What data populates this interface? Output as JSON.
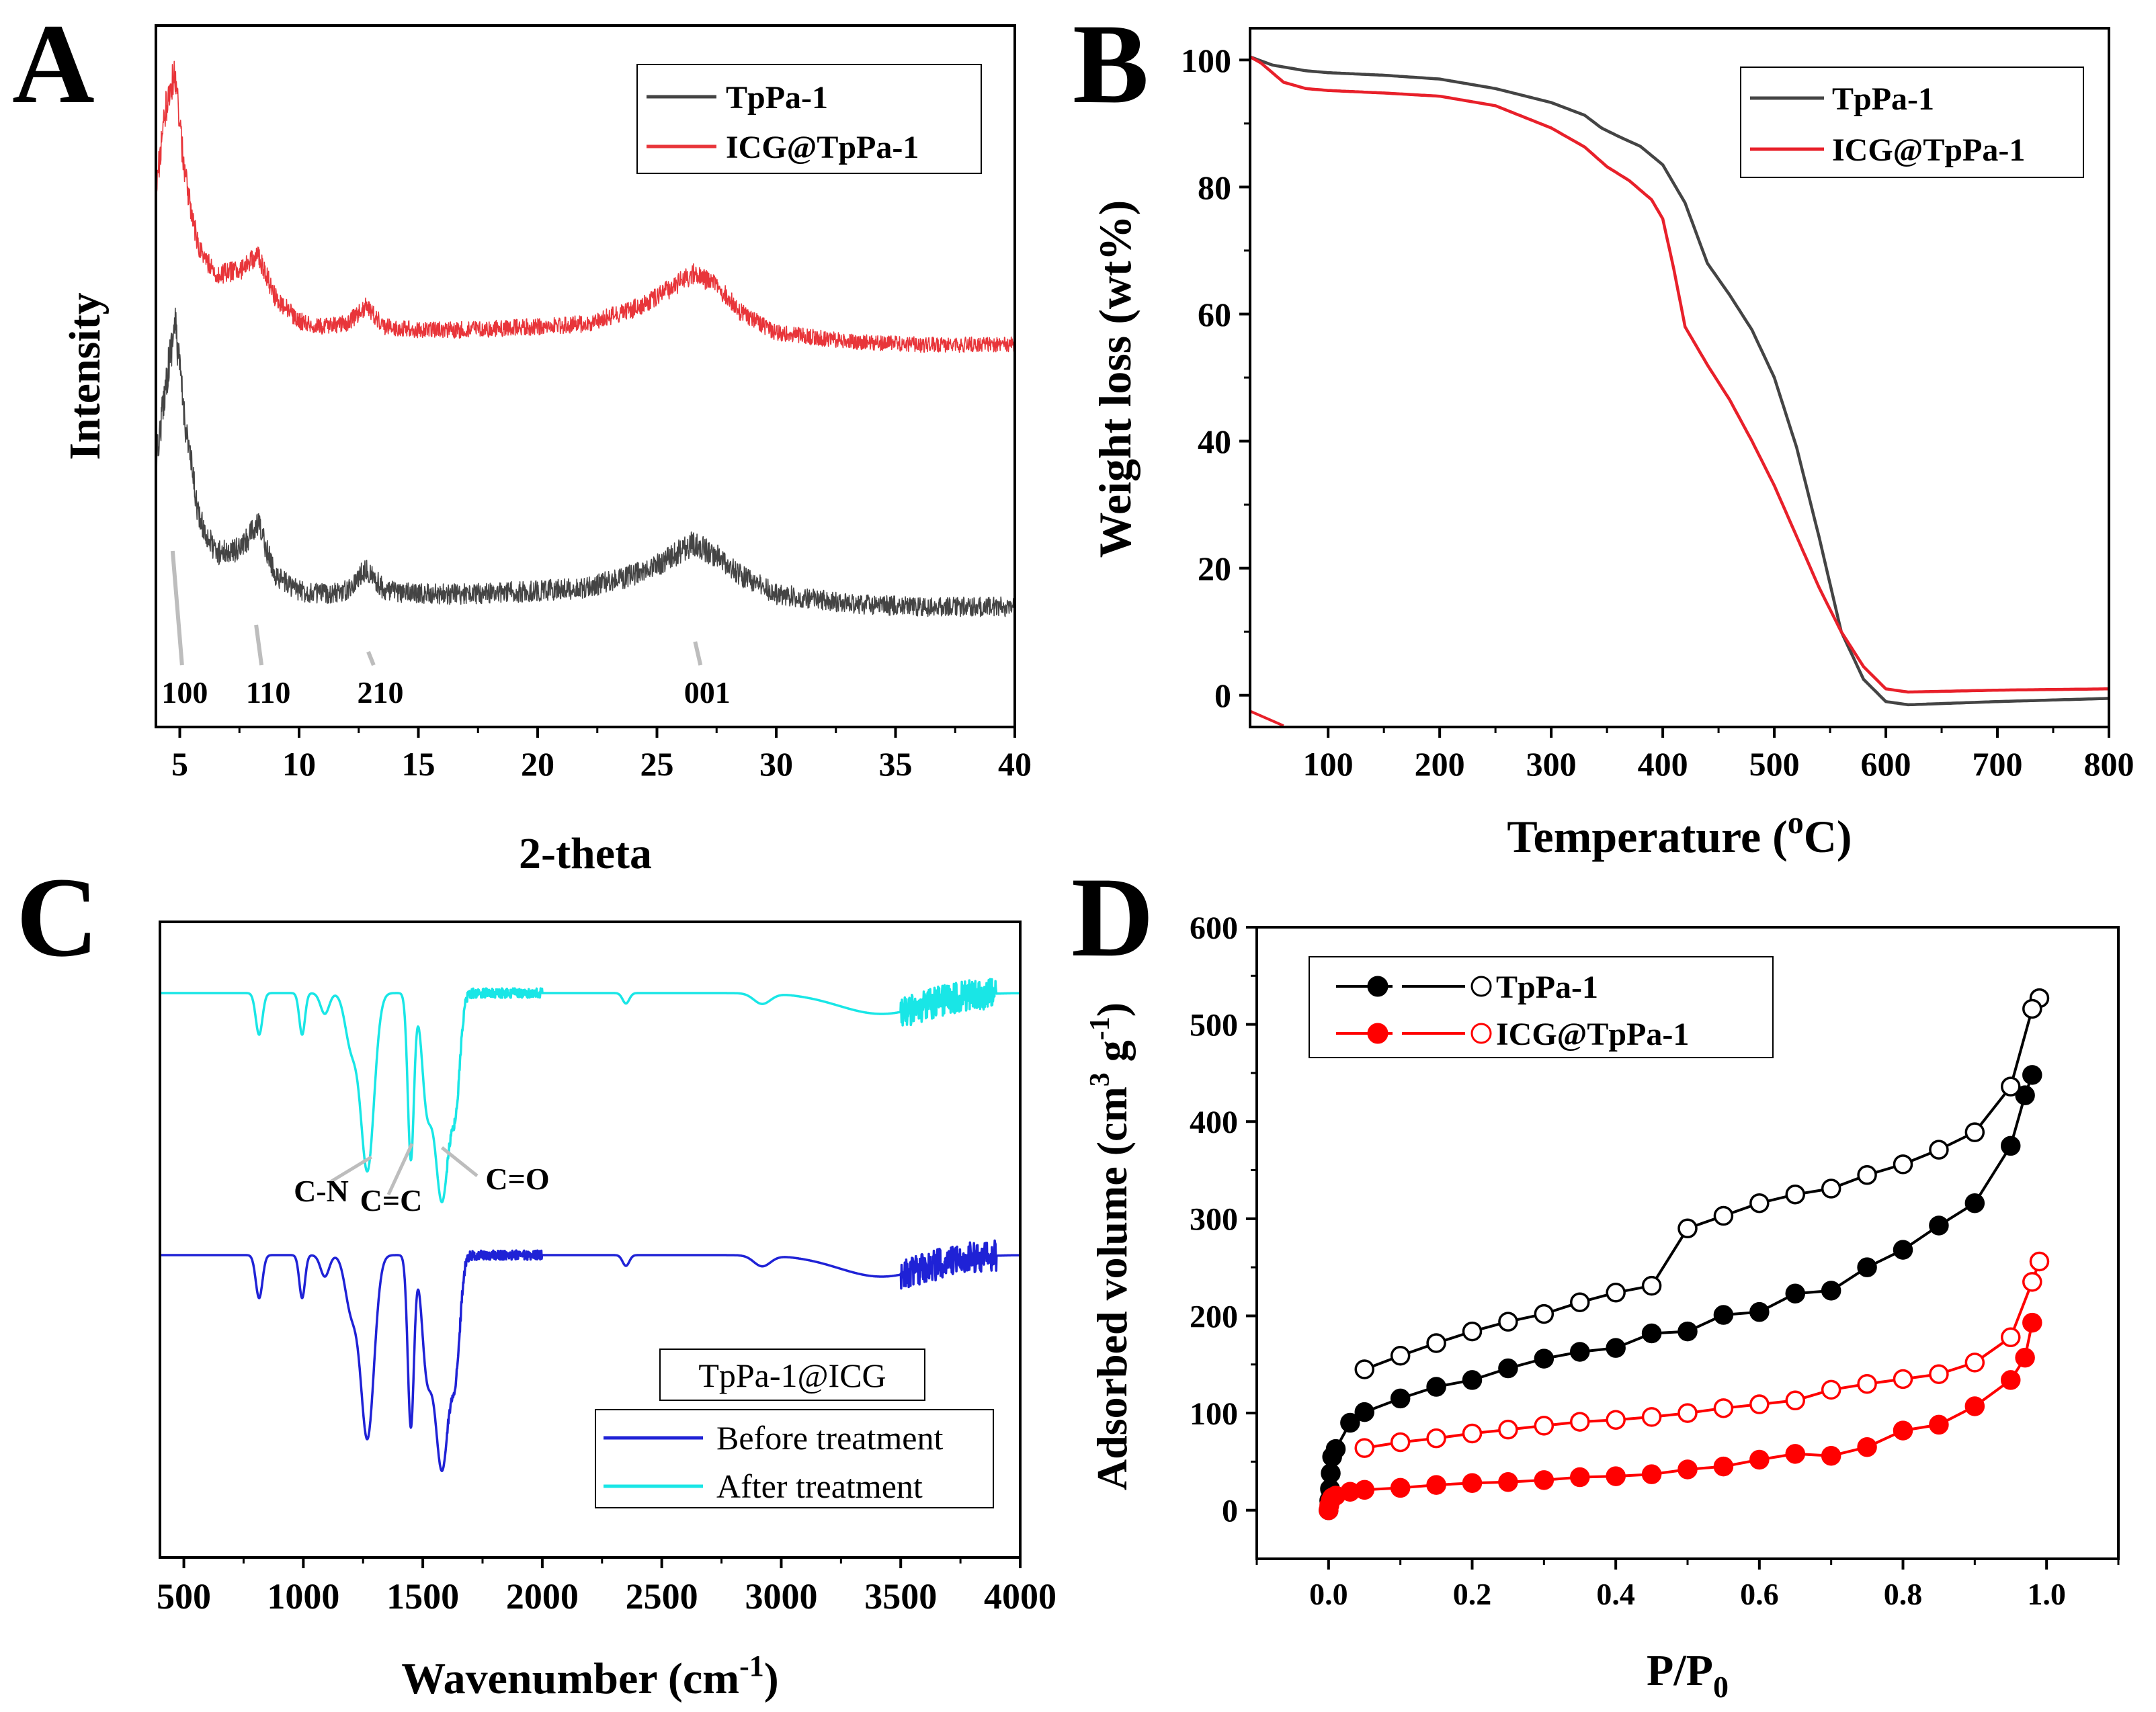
{
  "figure": {
    "panel_letters": [
      "A",
      "B",
      "C",
      "D"
    ]
  },
  "chart_data": [
    {
      "panel": "A",
      "type": "line",
      "xlabel": "2-theta",
      "ylabel": "Intensity",
      "xlim": [
        4,
        40
      ],
      "xticks": [
        5,
        10,
        15,
        20,
        25,
        30,
        35,
        40
      ],
      "series": [
        {
          "name": "TpPa-1",
          "color": "#444444",
          "profile": {
            "x": [
              4.0,
              4.4,
              4.8,
              5.2,
              5.8,
              6.5,
              7.5,
              8.3,
              9.0,
              10,
              11,
              12,
              12.8,
              13.6,
              15,
              17,
              20,
              22,
              24,
              25,
              26.5,
              27.5,
              28.5,
              30,
              33,
              36,
              40
            ],
            "y": [
              0.55,
              0.8,
              1.0,
              0.7,
              0.38,
              0.27,
              0.28,
              0.36,
              0.2,
              0.15,
              0.14,
              0.15,
              0.22,
              0.15,
              0.14,
              0.14,
              0.15,
              0.16,
              0.2,
              0.23,
              0.3,
              0.26,
              0.2,
              0.14,
              0.11,
              0.1,
              0.1
            ]
          }
        },
        {
          "name": "ICG@TpPa-1",
          "color": "#e8353a",
          "profile": {
            "x": [
              4.0,
              4.4,
              4.8,
              5.2,
              5.8,
              6.5,
              7.5,
              8.3,
              9.0,
              10,
              11,
              12,
              12.8,
              13.6,
              15,
              17,
              20,
              22,
              24,
              25,
              26.5,
              27.5,
              28.5,
              30,
              33,
              36,
              40
            ],
            "y": [
              0.6,
              0.88,
              1.0,
              0.66,
              0.4,
              0.32,
              0.33,
              0.38,
              0.24,
              0.16,
              0.14,
              0.15,
              0.21,
              0.14,
              0.13,
              0.13,
              0.14,
              0.15,
              0.2,
              0.24,
              0.32,
              0.28,
              0.19,
              0.12,
              0.09,
              0.08,
              0.08
            ]
          }
        }
      ],
      "annotations": [
        {
          "text": "100",
          "x": 4.7
        },
        {
          "text": "110",
          "x": 8.2
        },
        {
          "text": "210",
          "x": 12.9
        },
        {
          "text": "001",
          "x": 26.6
        }
      ],
      "legend": "top-right"
    },
    {
      "panel": "B",
      "type": "line",
      "xlabel": "Temperature (",
      "xlabel_sup": "o",
      "xlabel_end": "C)",
      "ylabel": "Weight loss (wt%)",
      "xlim": [
        30,
        800
      ],
      "ylim": [
        -5,
        105
      ],
      "xticks": [
        100,
        200,
        300,
        400,
        500,
        600,
        700,
        800
      ],
      "yticks": [
        0,
        20,
        40,
        60,
        80,
        100
      ],
      "series": [
        {
          "name": "TpPa-1",
          "color": "#444444",
          "x": [
            30,
            50,
            80,
            100,
            150,
            200,
            250,
            300,
            330,
            345,
            360,
            380,
            400,
            420,
            440,
            460,
            480,
            500,
            520,
            540,
            560,
            580,
            600,
            620,
            700,
            800
          ],
          "y": [
            100.5,
            99.2,
            98.3,
            98.0,
            97.6,
            97.0,
            95.5,
            93.3,
            91.3,
            89.3,
            88.0,
            86.4,
            83.5,
            77.5,
            68.0,
            63.0,
            57.5,
            50.0,
            39.0,
            25.0,
            10.0,
            2.5,
            -1.0,
            -1.5,
            -1.0,
            -0.5
          ]
        },
        {
          "name": "ICG@TpPa-1",
          "color": "#e8202a",
          "x": [
            30,
            40,
            50,
            60,
            80,
            100,
            150,
            200,
            250,
            300,
            330,
            350,
            370,
            390,
            400,
            410,
            420,
            440,
            460,
            480,
            500,
            520,
            540,
            560,
            580,
            600,
            620,
            700,
            800
          ],
          "y": [
            100.5,
            99.5,
            98.0,
            96.5,
            95.5,
            95.2,
            94.8,
            94.3,
            92.8,
            89.3,
            86.3,
            83.2,
            81.0,
            78.0,
            75.0,
            67.0,
            58.0,
            52.0,
            46.5,
            40.0,
            33.0,
            25.0,
            17.0,
            10.0,
            4.5,
            1.0,
            0.5,
            0.8,
            1.0
          ]
        }
      ],
      "legend": "top-right"
    },
    {
      "panel": "C",
      "type": "line",
      "xlabel": "Wavenumber (cm",
      "xlabel_sup": "-1",
      "xlabel_end": ")",
      "xlim": [
        400,
        4000
      ],
      "xticks": [
        500,
        1000,
        1500,
        2000,
        2500,
        3000,
        3500,
        4000
      ],
      "series": [
        {
          "name": "Before treatment",
          "color": "#1f22d6"
        },
        {
          "name": "After treatment",
          "color": "#19e6e6"
        }
      ],
      "bands": [
        {
          "center": 815,
          "width": 14,
          "depth": 0.2
        },
        {
          "center": 995,
          "width": 12,
          "depth": 0.2
        },
        {
          "center": 1090,
          "width": 18,
          "depth": 0.1
        },
        {
          "center": 1200,
          "width": 25,
          "depth": 0.25
        },
        {
          "center": 1268,
          "width": 28,
          "depth": 0.85
        },
        {
          "center": 1450,
          "width": 13,
          "depth": 0.8
        },
        {
          "center": 1515,
          "width": 20,
          "depth": 0.45
        },
        {
          "center": 1580,
          "width": 32,
          "depth": 1.0
        },
        {
          "center": 1640,
          "width": 18,
          "depth": 0.4
        },
        {
          "center": 2350,
          "width": 14,
          "depth": 0.05
        },
        {
          "center": 2920,
          "width": 35,
          "depth": 0.05
        },
        {
          "center": 3420,
          "width": 180,
          "depth": 0.1
        }
      ],
      "annotations": [
        "C-N",
        "C=C",
        "C=O"
      ],
      "legend_title": "TpPa-1@ICG",
      "legend": "bottom-right"
    },
    {
      "panel": "D",
      "type": "scatter",
      "xlabel": "P/P",
      "xlabel_sub": "0",
      "ylabel": "Adsorbed volume (cm",
      "ylabel_sup1": "3",
      "ylabel_mid": " g",
      "ylabel_sup2": "-1",
      "ylabel_end": ")",
      "xlim": [
        -0.1,
        1.1
      ],
      "ylim": [
        -50,
        600
      ],
      "xticks": [
        0.0,
        0.2,
        0.4,
        0.6,
        0.8,
        1.0
      ],
      "xtick_labels": [
        "0.0",
        "0.2",
        "0.4",
        "0.6",
        "0.8",
        "1.0"
      ],
      "yticks": [
        0,
        100,
        200,
        300,
        400,
        500,
        600
      ],
      "series": [
        {
          "name": "TpPa-1",
          "color": "#000000",
          "branch": "adsorption",
          "x": [
            0.0,
            0.001,
            0.002,
            0.003,
            0.005,
            0.01,
            0.03,
            0.05,
            0.1,
            0.15,
            0.2,
            0.25,
            0.3,
            0.35,
            0.4,
            0.45,
            0.5,
            0.55,
            0.6,
            0.65,
            0.7,
            0.75,
            0.8,
            0.85,
            0.9,
            0.95,
            0.97,
            0.98
          ],
          "y": [
            0,
            10,
            22,
            38,
            55,
            63,
            90,
            101,
            115,
            127,
            134,
            146,
            156,
            163,
            167,
            182,
            184,
            201,
            204,
            223,
            226,
            250,
            268,
            293,
            316,
            375,
            427,
            448
          ]
        },
        {
          "name": "TpPa-1",
          "color": "#000000",
          "branch": "desorption",
          "x": [
            0.99,
            0.98,
            0.95,
            0.9,
            0.85,
            0.8,
            0.75,
            0.7,
            0.65,
            0.6,
            0.55,
            0.5,
            0.45,
            0.4,
            0.35,
            0.3,
            0.25,
            0.2,
            0.15,
            0.1,
            0.05
          ],
          "y": [
            527,
            516,
            436,
            389,
            371,
            356,
            345,
            331,
            325,
            316,
            303,
            290,
            231,
            224,
            214,
            202,
            194,
            184,
            172,
            159,
            145
          ]
        },
        {
          "name": "ICG@TpPa-1",
          "color": "#ff0000",
          "branch": "adsorption",
          "x": [
            0.0,
            0.001,
            0.003,
            0.005,
            0.01,
            0.03,
            0.05,
            0.1,
            0.15,
            0.2,
            0.25,
            0.3,
            0.35,
            0.4,
            0.45,
            0.5,
            0.55,
            0.6,
            0.65,
            0.7,
            0.75,
            0.8,
            0.85,
            0.9,
            0.95,
            0.97,
            0.98
          ],
          "y": [
            0,
            5,
            10,
            13,
            15,
            19,
            21,
            23,
            26,
            28,
            29,
            31,
            34,
            35,
            37,
            42,
            45,
            52,
            58,
            56,
            65,
            82,
            88,
            107,
            134,
            157,
            193
          ]
        },
        {
          "name": "ICG@TpPa-1",
          "color": "#ff0000",
          "branch": "desorption",
          "x": [
            0.99,
            0.98,
            0.95,
            0.9,
            0.85,
            0.8,
            0.75,
            0.7,
            0.65,
            0.6,
            0.55,
            0.5,
            0.45,
            0.4,
            0.35,
            0.3,
            0.25,
            0.2,
            0.15,
            0.1,
            0.05
          ],
          "y": [
            256,
            235,
            178,
            152,
            140,
            135,
            130,
            124,
            113,
            109,
            105,
            100,
            96,
            93,
            91,
            87,
            83,
            79,
            74,
            70,
            64
          ]
        }
      ],
      "legend": "top-left"
    }
  ]
}
